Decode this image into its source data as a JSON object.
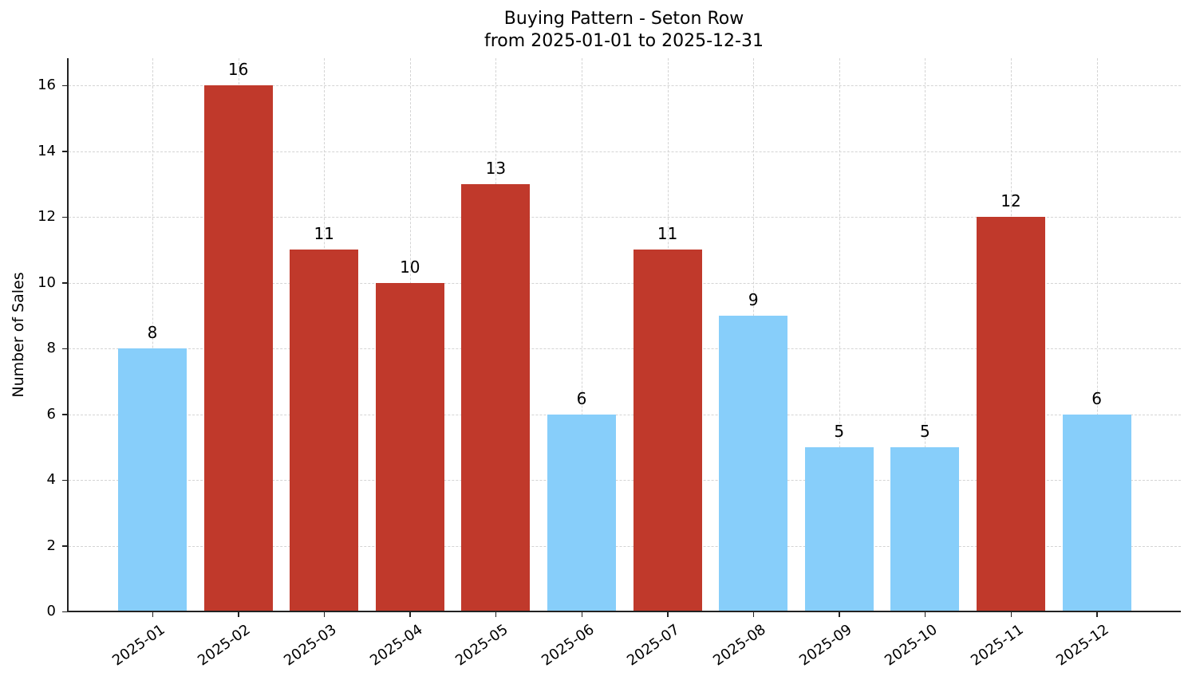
{
  "chart_data": {
    "type": "bar",
    "title": "Buying Pattern - Seton Row",
    "subtitle": "from 2025-01-01 to 2025-12-31",
    "xlabel": "",
    "ylabel": "Number of Sales",
    "categories": [
      "2025-01",
      "2025-02",
      "2025-03",
      "2025-04",
      "2025-05",
      "2025-06",
      "2025-07",
      "2025-08",
      "2025-09",
      "2025-10",
      "2025-11",
      "2025-12"
    ],
    "values": [
      8,
      16,
      11,
      10,
      13,
      6,
      11,
      9,
      5,
      5,
      12,
      6
    ],
    "bar_colors": [
      "#87CEFA",
      "#C0392B",
      "#C0392B",
      "#C0392B",
      "#C0392B",
      "#87CEFA",
      "#C0392B",
      "#87CEFA",
      "#87CEFA",
      "#87CEFA",
      "#C0392B",
      "#87CEFA"
    ],
    "highlight_color": "#C0392B",
    "base_color": "#87CEFA",
    "yticks": [
      0,
      2,
      4,
      6,
      8,
      10,
      12,
      14,
      16
    ],
    "ylim": [
      0,
      16.8
    ],
    "grid": true,
    "data_labels": true,
    "legend": null
  }
}
